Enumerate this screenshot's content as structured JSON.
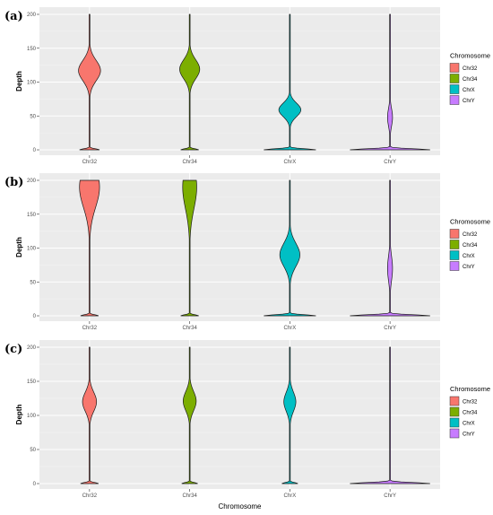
{
  "chart_data": [
    {
      "type": "violin",
      "panel_label": "(a)",
      "categories": [
        "Chr32",
        "Chr34",
        "ChrX",
        "ChrY"
      ],
      "ylabel": "Depth",
      "xlabel": "",
      "ylim": [
        0,
        200
      ],
      "yticks": [
        0,
        50,
        100,
        150,
        200
      ],
      "grid": true,
      "legend": {
        "title": "Chromosome",
        "entries": [
          "Chr32",
          "Chr34",
          "ChrX",
          "ChrY"
        ],
        "position": "right"
      },
      "colors": [
        "#F8766D",
        "#7CAE00",
        "#00BFC4",
        "#C77CFF"
      ],
      "series": [
        {
          "name": "Chr32",
          "max": 200,
          "spike_halfwidth": 0.1,
          "mode": 117,
          "mode_halfwidth": 0.11,
          "mode_spread": 15
        },
        {
          "name": "Chr34",
          "max": 200,
          "spike_halfwidth": 0.09,
          "mode": 119,
          "mode_halfwidth": 0.1,
          "mode_spread": 14
        },
        {
          "name": "ChrX",
          "max": 200,
          "spike_halfwidth": 0.26,
          "mode": 59,
          "mode_halfwidth": 0.11,
          "mode_spread": 10
        },
        {
          "name": "ChrY",
          "max": 200,
          "spike_halfwidth": 0.4,
          "mode": 48,
          "mode_halfwidth": 0.025,
          "mode_spread": 13
        }
      ]
    },
    {
      "type": "violin",
      "panel_label": "(b)",
      "categories": [
        "Chr32",
        "Chr34",
        "ChrX",
        "ChrY"
      ],
      "ylabel": "Depth",
      "xlabel": "",
      "ylim": [
        0,
        200
      ],
      "yticks": [
        0,
        50,
        100,
        150,
        200
      ],
      "grid": true,
      "legend": {
        "title": "Chromosome",
        "entries": [
          "Chr32",
          "Chr34",
          "ChrX",
          "ChrY"
        ],
        "position": "right"
      },
      "colors": [
        "#F8766D",
        "#7CAE00",
        "#00BFC4",
        "#C77CFF"
      ],
      "series": [
        {
          "name": "Chr32",
          "max": 200,
          "spike_halfwidth": 0.09,
          "mode": 190,
          "mode_halfwidth": 0.1,
          "mode_spread": 30
        },
        {
          "name": "Chr34",
          "max": 200,
          "spike_halfwidth": 0.09,
          "mode": 190,
          "mode_halfwidth": 0.07,
          "mode_spread": 32
        },
        {
          "name": "ChrX",
          "max": 200,
          "spike_halfwidth": 0.26,
          "mode": 90,
          "mode_halfwidth": 0.1,
          "mode_spread": 17
        },
        {
          "name": "ChrY",
          "max": 200,
          "spike_halfwidth": 0.4,
          "mode": 70,
          "mode_halfwidth": 0.025,
          "mode_spread": 18
        }
      ]
    },
    {
      "type": "violin",
      "panel_label": "(c)",
      "categories": [
        "Chr32",
        "Chr34",
        "ChrX",
        "ChrY"
      ],
      "ylabel": "Depth",
      "xlabel": "Chromosome",
      "ylim": [
        0,
        200
      ],
      "yticks": [
        0,
        50,
        100,
        150,
        200
      ],
      "grid": true,
      "legend": {
        "title": "Chromosome",
        "entries": [
          "Chr32",
          "Chr34",
          "ChrX",
          "ChrY"
        ],
        "position": "right"
      },
      "colors": [
        "#F8766D",
        "#7CAE00",
        "#00BFC4",
        "#C77CFF"
      ],
      "series": [
        {
          "name": "Chr32",
          "max": 200,
          "spike_halfwidth": 0.09,
          "mode": 120,
          "mode_halfwidth": 0.07,
          "mode_spread": 14
        },
        {
          "name": "Chr34",
          "max": 200,
          "spike_halfwidth": 0.08,
          "mode": 121,
          "mode_halfwidth": 0.065,
          "mode_spread": 14
        },
        {
          "name": "ChrX",
          "max": 200,
          "spike_halfwidth": 0.08,
          "mode": 120,
          "mode_halfwidth": 0.06,
          "mode_spread": 14
        },
        {
          "name": "ChrY",
          "max": 200,
          "spike_halfwidth": 0.4,
          "mode": 0,
          "mode_halfwidth": 0.0,
          "mode_spread": 5
        }
      ]
    }
  ]
}
